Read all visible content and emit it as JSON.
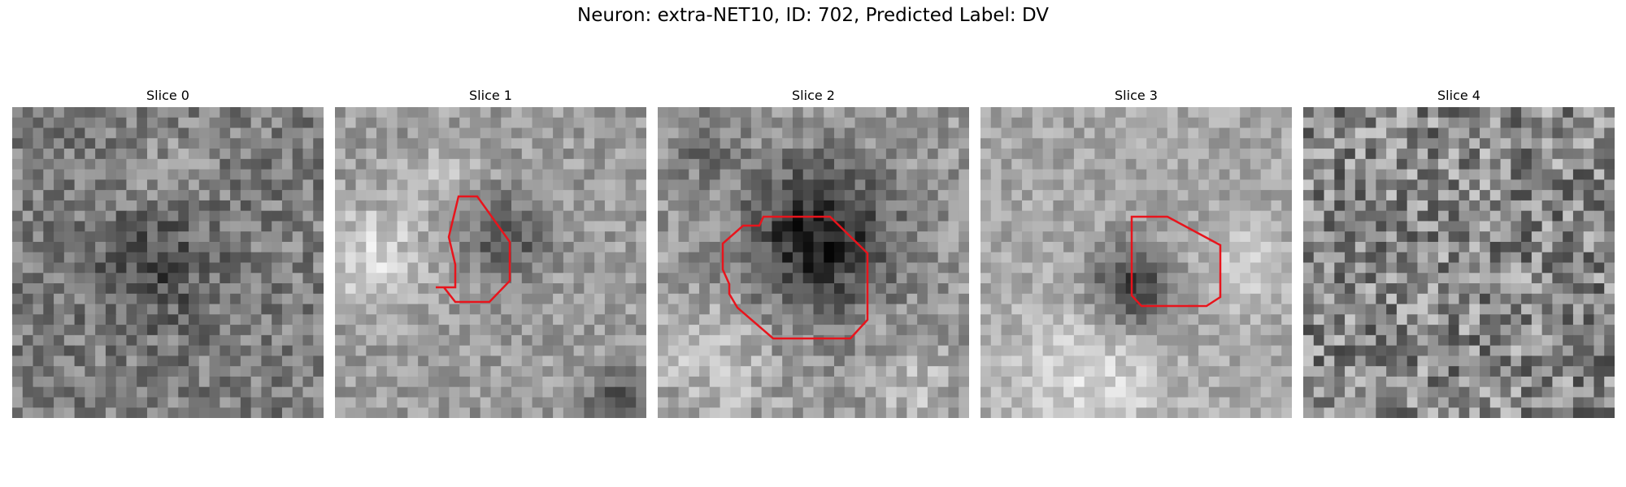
{
  "figure": {
    "title": "Neuron: extra-NET10, ID: 702, Predicted Label: DV"
  },
  "colors": {
    "contour": "#e8141c",
    "background": "#ffffff"
  },
  "panels": [
    {
      "title": "Slice 0",
      "has_contour": false
    },
    {
      "title": "Slice 1",
      "has_contour": true
    },
    {
      "title": "Slice 2",
      "has_contour": true
    },
    {
      "title": "Slice 3",
      "has_contour": true
    },
    {
      "title": "Slice 4",
      "has_contour": false
    }
  ]
}
